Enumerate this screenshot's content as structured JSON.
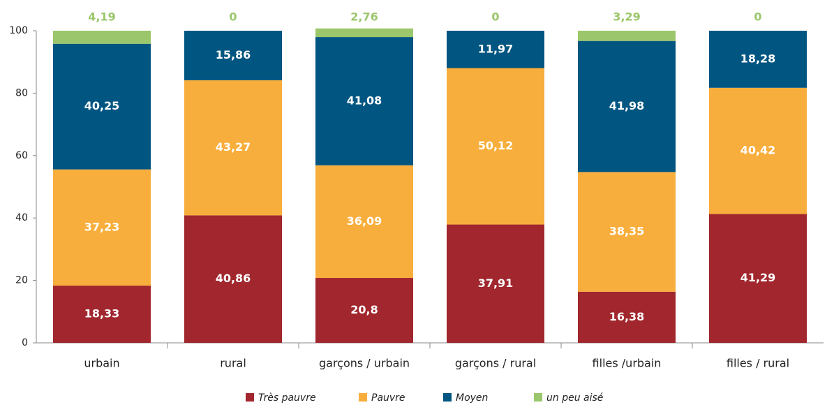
{
  "chart_data": {
    "type": "stacked-bar",
    "categories": [
      "urbain",
      "rural",
      "garçons / urbain",
      "garçons / rural",
      "filles /urbain",
      "filles / rural"
    ],
    "series": [
      {
        "name": "Très pauvre",
        "color": "#a1262d",
        "values": [
          18.33,
          40.86,
          20.8,
          37.91,
          16.38,
          41.29
        ],
        "value_labels": [
          "18,33",
          "40,86",
          "20,8",
          "37,91",
          "16,38",
          "41,29"
        ]
      },
      {
        "name": "Pauvre",
        "color": "#f8ae3c",
        "values": [
          37.23,
          43.27,
          36.09,
          50.12,
          38.35,
          40.42
        ],
        "value_labels": [
          "37,23",
          "43,27",
          "36,09",
          "50,12",
          "38,35",
          "40,42"
        ]
      },
      {
        "name": "Moyen",
        "color": "#005581",
        "values": [
          40.25,
          15.86,
          41.08,
          11.97,
          41.98,
          18.28
        ],
        "value_labels": [
          "40,25",
          "15,86",
          "41,08",
          "11,97",
          "41,98",
          "18,28"
        ]
      },
      {
        "name": "un peu aisé",
        "color": "#9bc66b",
        "values": [
          4.19,
          0,
          2.76,
          0,
          3.29,
          0
        ],
        "value_labels": [
          "4,19",
          "0",
          "2,76",
          "0",
          "3,29",
          "0"
        ]
      }
    ],
    "ylim": [
      0,
      100
    ],
    "yticks": [
      0,
      20,
      40,
      60,
      80,
      100
    ],
    "grid": false,
    "legend": "bottom"
  }
}
